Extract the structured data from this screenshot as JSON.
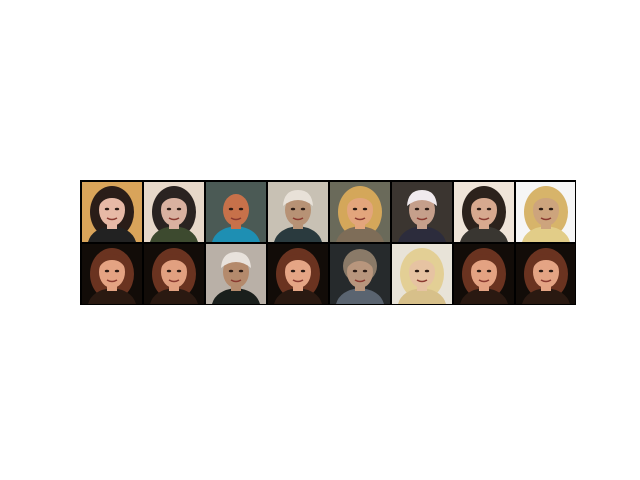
{
  "figure": {
    "description_type": "image-grid",
    "rows": 2,
    "columns": 8
  },
  "tiles": [
    {
      "bg": "#d9a45a",
      "hair": "#2a1d18",
      "skin": "#e7b9a6",
      "shirt": "#222222",
      "hair_style": "long"
    },
    {
      "bg": "#e7d8c9",
      "hair": "#2a2321",
      "skin": "#d9b1a0",
      "shirt": "#3d4a2f",
      "hair_style": "long"
    },
    {
      "bg": "#4b5a55",
      "hair": "#5a3325",
      "skin": "#c7714a",
      "shirt": "#1e8fb3",
      "hair_style": "bald"
    },
    {
      "bg": "#c8c1b4",
      "hair": "#e8e1d8",
      "skin": "#b79275",
      "shirt": "#2a3a3e",
      "hair_style": "cap"
    },
    {
      "bg": "#6a6a5a",
      "hair": "#d4a75a",
      "skin": "#e3a57c",
      "shirt": "#7e6d58",
      "hair_style": "long"
    },
    {
      "bg": "#3b3530",
      "hair": "#f0eaee",
      "skin": "#c59f8b",
      "shirt": "#2c2c3c",
      "hair_style": "cap"
    },
    {
      "bg": "#efe4d8",
      "hair": "#2c221c",
      "skin": "#d7a98f",
      "shirt": "#393631",
      "hair_style": "long"
    },
    {
      "bg": "#f6f6f6",
      "hair": "#d7b46a",
      "skin": "#cda47d",
      "shirt": "#e2cd88",
      "hair_style": "long"
    },
    {
      "bg": "#120c08",
      "hair": "#6a3320",
      "skin": "#e4a383",
      "shirt": "#2a1911",
      "hair_style": "long"
    },
    {
      "bg": "#120c08",
      "hair": "#6a3320",
      "skin": "#e1a080",
      "shirt": "#2a1911",
      "hair_style": "long"
    },
    {
      "bg": "#b9b0a7",
      "hair": "#e8e2dc",
      "skin": "#b48a6c",
      "shirt": "#1a1f1c",
      "hair_style": "cap"
    },
    {
      "bg": "#120c08",
      "hair": "#6a3320",
      "skin": "#e5a585",
      "shirt": "#2a1911",
      "hair_style": "long"
    },
    {
      "bg": "#262a2c",
      "hair": "#8a7a68",
      "skin": "#b8967d",
      "shirt": "#5a6470",
      "hair_style": "short"
    },
    {
      "bg": "#e8e3d8",
      "hair": "#e3cf95",
      "skin": "#e6c3a2",
      "shirt": "#d7c08a",
      "hair_style": "long"
    },
    {
      "bg": "#120c08",
      "hair": "#6a3320",
      "skin": "#e3a282",
      "shirt": "#2a1911",
      "hair_style": "long"
    },
    {
      "bg": "#120c08",
      "hair": "#6a3320",
      "skin": "#e4a484",
      "shirt": "#2a1911",
      "hair_style": "long"
    }
  ]
}
